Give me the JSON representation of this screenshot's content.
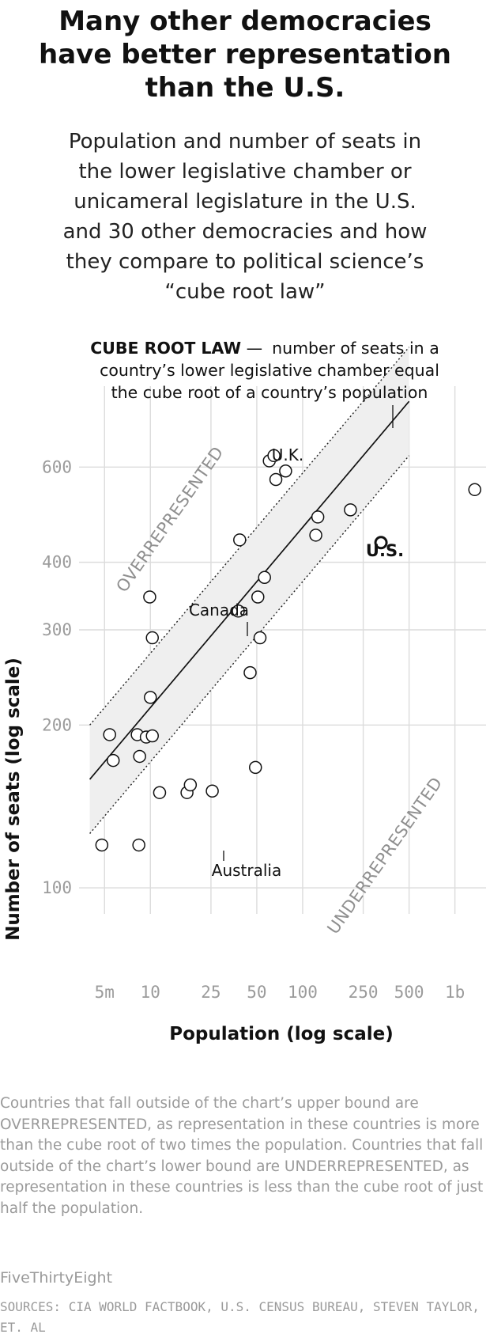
{
  "header": {
    "title_lines": [
      "Many other democracies",
      "have better representation",
      "than the U.S."
    ],
    "subtitle_lines": [
      "Population and number of seats in",
      "the lower legislative chamber or",
      "unicameral legislature in the U.S.",
      "and 30 other democracies and how",
      "they compare to political science’s",
      "“cube root law”"
    ]
  },
  "chart_data": {
    "type": "scatter",
    "x_scale": "log",
    "y_scale": "log",
    "xlabel": "Population (log scale)",
    "ylabel": "Number of seats (log scale)",
    "x_ticks": [
      {
        "value": 5000000,
        "label": "5m"
      },
      {
        "value": 10000000,
        "label": "10"
      },
      {
        "value": 25000000,
        "label": "25"
      },
      {
        "value": 50000000,
        "label": "50"
      },
      {
        "value": 100000000,
        "label": "100"
      },
      {
        "value": 250000000,
        "label": "250"
      },
      {
        "value": 500000000,
        "label": "500"
      },
      {
        "value": 1000000000,
        "label": "1b"
      }
    ],
    "y_ticks": [
      {
        "value": 100,
        "label": "100"
      },
      {
        "value": 200,
        "label": "200"
      },
      {
        "value": 300,
        "label": "300"
      },
      {
        "value": 400,
        "label": "400"
      },
      {
        "value": 600,
        "label": "600"
      }
    ],
    "xlim": [
      3400000,
      1700000000
    ],
    "ylim": [
      88,
      870
    ],
    "grid": true,
    "cube_root_law_label": {
      "bold": "CUBE ROOT LAW",
      "dash": " —",
      "lines": [
        "number of seats in a",
        "country’s lower legislative chamber equal",
        "the cube root of a country’s population"
      ]
    },
    "region_labels": {
      "over": "OVERREPRESENTED",
      "under": "UNDERREPRESENTED"
    },
    "labeled_points": {
      "uk": "U.K.",
      "canada": "Canada",
      "australia": "Australia",
      "us": "U.S."
    },
    "points": [
      {
        "x": 4800000,
        "y": 120
      },
      {
        "x": 5400000,
        "y": 192
      },
      {
        "x": 5700000,
        "y": 172
      },
      {
        "x": 8400000,
        "y": 120
      },
      {
        "x": 8200000,
        "y": 192
      },
      {
        "x": 8500000,
        "y": 175
      },
      {
        "x": 9400000,
        "y": 190
      },
      {
        "x": 10300000,
        "y": 191
      },
      {
        "x": 10000000,
        "y": 225
      },
      {
        "x": 10300000,
        "y": 290
      },
      {
        "x": 9900000,
        "y": 345
      },
      {
        "x": 11500000,
        "y": 150
      },
      {
        "x": 17400000,
        "y": 150
      },
      {
        "x": 18300000,
        "y": 155
      },
      {
        "x": 25500000,
        "y": 151
      },
      {
        "x": 37800000,
        "y": 325
      },
      {
        "x": 38600000,
        "y": 440
      },
      {
        "x": 45200000,
        "y": 250
      },
      {
        "x": 49000000,
        "y": 167
      },
      {
        "x": 50800000,
        "y": 345
      },
      {
        "x": 52500000,
        "y": 290
      },
      {
        "x": 56200000,
        "y": 375
      },
      {
        "x": 60400000,
        "y": 616
      },
      {
        "x": 64800000,
        "y": 630
      },
      {
        "x": 66700000,
        "y": 569
      },
      {
        "x": 77300000,
        "y": 590
      },
      {
        "x": 122000000,
        "y": 449
      },
      {
        "x": 125800000,
        "y": 485
      },
      {
        "x": 206000000,
        "y": 500
      },
      {
        "x": 327000000,
        "y": 435
      },
      {
        "x": 1350000000,
        "y": 545
      }
    ]
  },
  "footnote": "Countries that fall outside of the chart’s upper bound are OVERREPRESENTED, as representation in these countries is more than the cube root of two times the population. Countries that fall outside of the chart’s lower bound are UNDERREPRESENTED, as representation in these countries is less than the cube root of just half the population.",
  "footer": {
    "brand": "FiveThirtyEight",
    "sources": "SOURCES: CIA WORLD FACTBOOK, U.S. CENSUS BUREAU, STEVEN TAYLOR, ET. AL"
  }
}
